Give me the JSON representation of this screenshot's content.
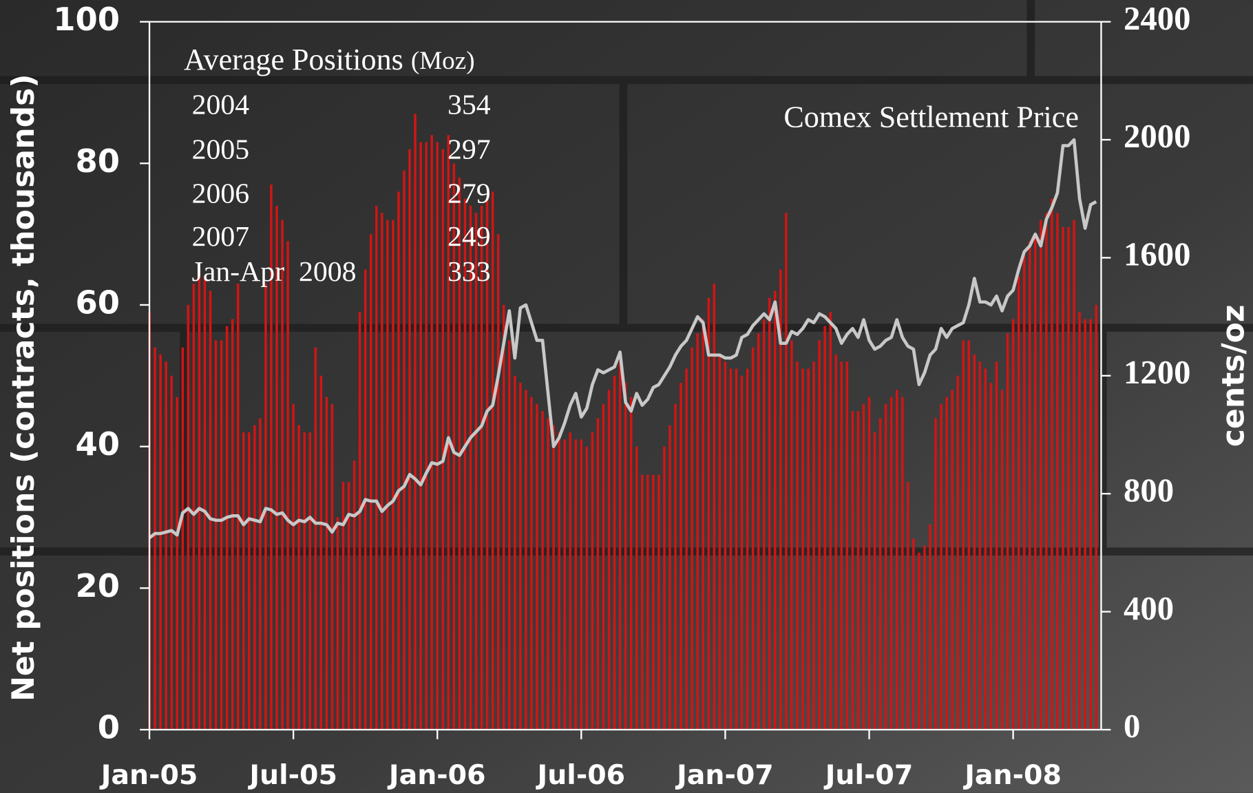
{
  "chart_data": {
    "type": "bar",
    "categories": [
      "Jan-05",
      null,
      null,
      null,
      null,
      null,
      null,
      null,
      null,
      null,
      null,
      null,
      null,
      null,
      null,
      null,
      null,
      null,
      null,
      null,
      null,
      null,
      null,
      null,
      null,
      null,
      "Jul-05",
      null,
      null,
      null,
      null,
      null,
      null,
      null,
      null,
      null,
      null,
      null,
      null,
      null,
      null,
      null,
      null,
      null,
      null,
      null,
      null,
      null,
      null,
      null,
      null,
      null,
      "Jan-06",
      null,
      null,
      null,
      null,
      null,
      null,
      null,
      null,
      null,
      null,
      null,
      null,
      null,
      null,
      null,
      null,
      null,
      null,
      null,
      null,
      null,
      null,
      null,
      null,
      null,
      "Jul-06",
      null,
      null,
      null,
      null,
      null,
      null,
      null,
      null,
      null,
      null,
      null,
      null,
      null,
      null,
      null,
      null,
      null,
      null,
      null,
      null,
      null,
      null,
      null,
      null,
      null,
      "Jan-07",
      null,
      null,
      null,
      null,
      null,
      null,
      null,
      null,
      null,
      null,
      null,
      null,
      null,
      null,
      null,
      null,
      null,
      null,
      null,
      null,
      null,
      null,
      null,
      null,
      null,
      "Jul-07",
      null,
      null,
      null,
      null,
      null,
      null,
      null,
      null,
      null,
      null,
      null,
      null,
      null,
      null,
      null,
      null,
      null,
      null,
      null,
      null,
      null,
      null,
      null,
      null,
      null,
      "Jan-08",
      null,
      null,
      null,
      null,
      null,
      null,
      null,
      null,
      null,
      null,
      null,
      null,
      null,
      null,
      null
    ],
    "series": [
      {
        "type": "bar",
        "color": "#d41414",
        "values": [
          59,
          54,
          53,
          52,
          50,
          47,
          54,
          60,
          63,
          65,
          64,
          62,
          55,
          55,
          57,
          58,
          63,
          42,
          42,
          43,
          44,
          63,
          77,
          74,
          72,
          69,
          46,
          43,
          42,
          42,
          54,
          50,
          47,
          46,
          30,
          35,
          35,
          38,
          59,
          65,
          70,
          74,
          73,
          72,
          72,
          76,
          79,
          82,
          87,
          83,
          83,
          84,
          83,
          82,
          84,
          80,
          78,
          75,
          74,
          73,
          74,
          75,
          76,
          70,
          60,
          55,
          50,
          49,
          48,
          47,
          46,
          45,
          44,
          43,
          42,
          41,
          42,
          41,
          41,
          40,
          42,
          44,
          46,
          48,
          50,
          52,
          49,
          47,
          40,
          36,
          36,
          36,
          36,
          40,
          43,
          46,
          49,
          51,
          54,
          56,
          58,
          61,
          63,
          53,
          52,
          51,
          51,
          50,
          51,
          54,
          56,
          58,
          61,
          62,
          65,
          73,
          55,
          52,
          51,
          51,
          52,
          55,
          57,
          59,
          53,
          52,
          52,
          45,
          45,
          46,
          47,
          42,
          44,
          46,
          47,
          48,
          47,
          35,
          27,
          25,
          26,
          29,
          44,
          46,
          47,
          48,
          50,
          55,
          55,
          53,
          52,
          51,
          49,
          52,
          48,
          56,
          58,
          64,
          67,
          69,
          70,
          72,
          73,
          75,
          73,
          71,
          71,
          72,
          59,
          58,
          58,
          60
        ]
      },
      {
        "type": "line",
        "name": "Comex Settlement Price",
        "axis": "y2",
        "color": "#c8c8c8",
        "values": [
          650,
          665,
          665,
          670,
          675,
          660,
          735,
          750,
          730,
          750,
          740,
          715,
          710,
          710,
          720,
          725,
          725,
          695,
          715,
          710,
          705,
          750,
          745,
          730,
          735,
          710,
          695,
          710,
          705,
          720,
          700,
          700,
          695,
          670,
          700,
          695,
          730,
          725,
          740,
          780,
          775,
          775,
          740,
          760,
          775,
          810,
          825,
          865,
          850,
          830,
          870,
          905,
          900,
          910,
          990,
          940,
          930,
          960,
          990,
          1010,
          1030,
          1080,
          1100,
          1200,
          1310,
          1420,
          1260,
          1430,
          1440,
          1380,
          1320,
          1320,
          1140,
          960,
          990,
          1040,
          1100,
          1140,
          1060,
          1090,
          1170,
          1220,
          1210,
          1220,
          1230,
          1280,
          1110,
          1080,
          1140,
          1100,
          1120,
          1160,
          1170,
          1200,
          1230,
          1270,
          1300,
          1320,
          1360,
          1400,
          1380,
          1270,
          1270,
          1270,
          1260,
          1260,
          1270,
          1330,
          1340,
          1370,
          1390,
          1410,
          1390,
          1450,
          1310,
          1310,
          1350,
          1340,
          1360,
          1390,
          1380,
          1410,
          1400,
          1380,
          1360,
          1310,
          1340,
          1360,
          1330,
          1390,
          1320,
          1290,
          1300,
          1320,
          1330,
          1390,
          1330,
          1300,
          1290,
          1170,
          1210,
          1270,
          1290,
          1360,
          1330,
          1360,
          1370,
          1380,
          1440,
          1530,
          1450,
          1450,
          1440,
          1470,
          1420,
          1470,
          1490,
          1560,
          1620,
          1640,
          1680,
          1640,
          1730,
          1770,
          1820,
          1980,
          1980,
          2000,
          1800,
          1700,
          1780,
          1790
        ]
      }
    ],
    "y_label": "Net positions (contracts, thousands)",
    "y2_label": "cents/oz",
    "ylim": [
      0,
      100
    ],
    "yticks": [
      0,
      20,
      40,
      60,
      80,
      100
    ],
    "y2lim": [
      0,
      2400
    ],
    "y2ticks": [
      0,
      400,
      800,
      1200,
      1600,
      2000,
      2400
    ],
    "grid": false,
    "inset": {
      "title": "Average Positions",
      "unit": "(Moz)",
      "rows": [
        [
          "2004",
          "354"
        ],
        [
          "2005",
          "297"
        ],
        [
          "2006",
          "279"
        ],
        [
          "2007",
          "249"
        ],
        [
          "Jan-Apr  2008",
          "333"
        ]
      ]
    }
  }
}
